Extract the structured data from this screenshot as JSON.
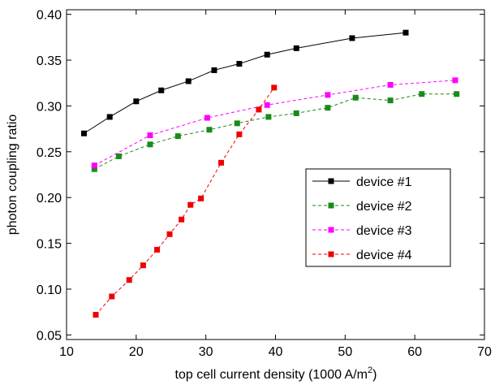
{
  "chart_data": {
    "type": "line",
    "xlabel": [
      "top cell current density (1000 A/m",
      "2",
      ")"
    ],
    "ylabel": "photon coupling ratio",
    "xlim": [
      10,
      70
    ],
    "xticks": [
      10,
      20,
      30,
      40,
      50,
      60,
      70
    ],
    "ylim": [
      0.045,
      0.405
    ],
    "yticks": [
      0.05,
      {
        "value": 0.1,
        "label": "0.10"
      },
      0.15,
      {
        "value": 0.2,
        "label": "0.20"
      },
      0.25,
      {
        "value": 0.3,
        "label": "0.30"
      },
      0.35,
      {
        "value": 0.4,
        "label": "0.40"
      }
    ],
    "legend": "lower right",
    "series": [
      {
        "name": "device #1",
        "color": "#000000",
        "dash": false,
        "x": [
          12.5,
          16.2,
          20,
          23.6,
          27.5,
          31.2,
          34.8,
          38.8,
          43,
          51,
          58.7
        ],
        "values": [
          0.27,
          0.288,
          0.305,
          0.317,
          0.327,
          0.339,
          0.346,
          0.356,
          0.363,
          0.374,
          0.38
        ]
      },
      {
        "name": "device #2",
        "color": "#1a8a1a",
        "dash": true,
        "x": [
          14,
          17.5,
          22,
          26,
          30.5,
          34.5,
          39,
          43,
          47.5,
          51.5,
          56.5,
          61,
          66
        ],
        "values": [
          0.231,
          0.245,
          0.258,
          0.267,
          0.274,
          0.281,
          0.288,
          0.292,
          0.298,
          0.309,
          0.306,
          0.313,
          0.313
        ]
      },
      {
        "name": "device #3",
        "color": "#ff00ff",
        "dash": true,
        "x": [
          14,
          22,
          30.2,
          38.8,
          47.5,
          56.5,
          65.8
        ],
        "values": [
          0.235,
          0.268,
          0.287,
          0.301,
          0.312,
          0.323,
          0.328
        ]
      },
      {
        "name": "device #4",
        "color": "#ee0000",
        "dash": true,
        "x": [
          14.2,
          16.5,
          19,
          21,
          23,
          24.8,
          26.5,
          27.8,
          29.3,
          32.2,
          34.8,
          37.6,
          39.8
        ],
        "values": [
          0.072,
          0.092,
          0.11,
          0.126,
          0.143,
          0.16,
          0.176,
          0.192,
          0.199,
          0.238,
          0.269,
          0.296,
          0.32
        ]
      }
    ]
  }
}
